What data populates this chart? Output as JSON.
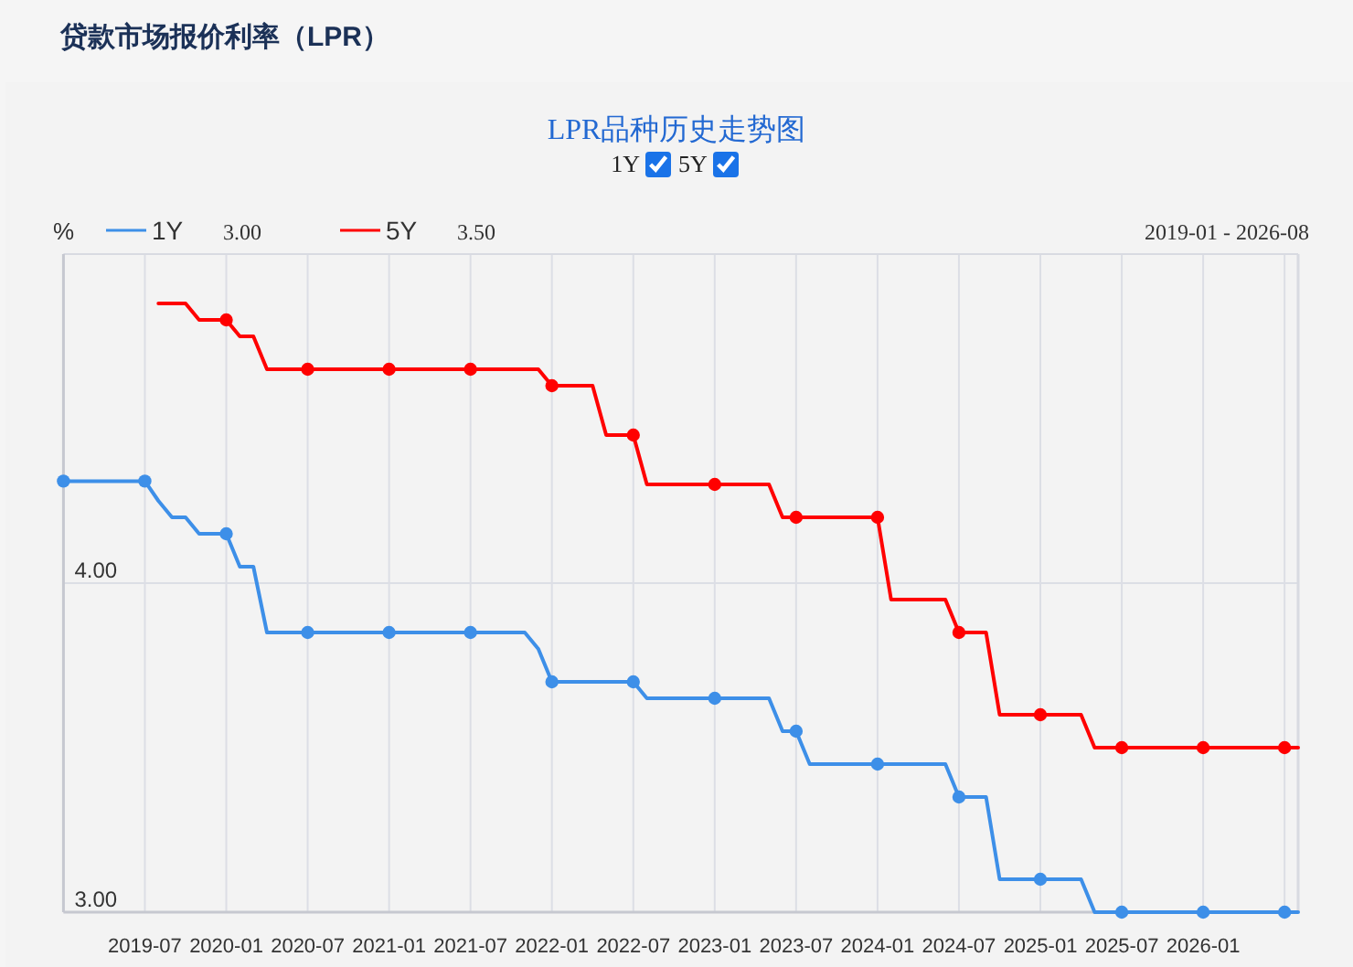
{
  "chart_data": {
    "type": "line",
    "title": "贷款市场报价利率（LPR）",
    "subtitle": "LPR品种历史走势图",
    "ylabel": "%",
    "annotations": [
      "3.00",
      "3.50",
      "2019-01 - 2026-08"
    ],
    "x": [
      "2019-01",
      "2019-02",
      "2019-03",
      "2019-04",
      "2019-05",
      "2019-06",
      "2019-07",
      "2019-08",
      "2019-09",
      "2019-10",
      "2019-11",
      "2019-12",
      "2020-01",
      "2020-02",
      "2020-03",
      "2020-04",
      "2020-05",
      "2020-06",
      "2020-07",
      "2020-08",
      "2020-09",
      "2020-10",
      "2020-11",
      "2020-12",
      "2021-01",
      "2021-02",
      "2021-03",
      "2021-04",
      "2021-05",
      "2021-06",
      "2021-07",
      "2021-08",
      "2021-09",
      "2021-10",
      "2021-11",
      "2021-12",
      "2022-01",
      "2022-02",
      "2022-03",
      "2022-04",
      "2022-05",
      "2022-06",
      "2022-07",
      "2022-08",
      "2022-09",
      "2022-10",
      "2022-11",
      "2022-12",
      "2023-01",
      "2023-02",
      "2023-03",
      "2023-04",
      "2023-05",
      "2023-06",
      "2023-07",
      "2023-08",
      "2023-09",
      "2023-10",
      "2023-11",
      "2023-12",
      "2024-01",
      "2024-02",
      "2024-03",
      "2024-04",
      "2024-05",
      "2024-06",
      "2024-07",
      "2024-08",
      "2024-09",
      "2024-10",
      "2024-11",
      "2024-12",
      "2025-01",
      "2025-02",
      "2025-03",
      "2025-04",
      "2025-05",
      "2025-06",
      "2025-07",
      "2025-08",
      "2025-09",
      "2025-10",
      "2025-11",
      "2025-12",
      "2026-01",
      "2026-02",
      "2026-03",
      "2026-04",
      "2026-05",
      "2026-06",
      "2026-07",
      "2026-08"
    ],
    "xlim": [
      "2019-01",
      "2026-08"
    ],
    "xticks": [
      {
        "value": "2019-01",
        "label": null
      },
      {
        "value": "2019-07",
        "label": "2019-07"
      },
      {
        "value": "2020-01",
        "label": "2020-01"
      },
      {
        "value": "2020-07",
        "label": "2020-07"
      },
      {
        "value": "2021-01",
        "label": "2021-01"
      },
      {
        "value": "2021-07",
        "label": "2021-07"
      },
      {
        "value": "2022-01",
        "label": "2022-01"
      },
      {
        "value": "2022-07",
        "label": "2022-07"
      },
      {
        "value": "2023-01",
        "label": "2023-01"
      },
      {
        "value": "2023-07",
        "label": "2023-07"
      },
      {
        "value": "2024-01",
        "label": "2024-01"
      },
      {
        "value": "2024-07",
        "label": "2024-07"
      },
      {
        "value": "2025-01",
        "label": "2025-01"
      },
      {
        "value": "2025-07",
        "label": "2025-07"
      },
      {
        "value": "2026-01",
        "label": "2026-01"
      },
      {
        "value": "2026-07",
        "label": null
      }
    ],
    "ylim": [
      3,
      5
    ],
    "yticks": [
      {
        "value": 3,
        "label": "3.00"
      },
      {
        "value": 4,
        "label": "4.00"
      }
    ],
    "grid": true,
    "legend": "top left",
    "line_style": "solid",
    "series": [
      {
        "name": "1Y",
        "color": "#3d8fe8",
        "marker": "none",
        "values": [
          4.31,
          4.31,
          4.31,
          4.31,
          4.31,
          4.31,
          4.31,
          4.25,
          4.2,
          4.2,
          4.15,
          4.15,
          4.15,
          4.05,
          4.05,
          3.85,
          3.85,
          3.85,
          3.85,
          3.85,
          3.85,
          3.85,
          3.85,
          3.85,
          3.85,
          3.85,
          3.85,
          3.85,
          3.85,
          3.85,
          3.85,
          3.85,
          3.85,
          3.85,
          3.85,
          3.8,
          3.7,
          3.7,
          3.7,
          3.7,
          3.7,
          3.7,
          3.7,
          3.65,
          3.65,
          3.65,
          3.65,
          3.65,
          3.65,
          3.65,
          3.65,
          3.65,
          3.65,
          3.55,
          3.55,
          3.45,
          3.45,
          3.45,
          3.45,
          3.45,
          3.45,
          3.45,
          3.45,
          3.45,
          3.45,
          3.45,
          3.35,
          3.35,
          3.35,
          3.1,
          3.1,
          3.1,
          3.1,
          3.1,
          3.1,
          3.1,
          3,
          3,
          3,
          3,
          3,
          3,
          3,
          3,
          3,
          3,
          3,
          3,
          3,
          3,
          3,
          3
        ]
      },
      {
        "name": "5Y",
        "color": "#ff0000",
        "marker": "none",
        "values": [
          null,
          null,
          null,
          null,
          null,
          null,
          null,
          4.85,
          4.85,
          4.85,
          4.8,
          4.8,
          4.8,
          4.75,
          4.75,
          4.65,
          4.65,
          4.65,
          4.65,
          4.65,
          4.65,
          4.65,
          4.65,
          4.65,
          4.65,
          4.65,
          4.65,
          4.65,
          4.65,
          4.65,
          4.65,
          4.65,
          4.65,
          4.65,
          4.65,
          4.65,
          4.6,
          4.6,
          4.6,
          4.6,
          4.45,
          4.45,
          4.45,
          4.3,
          4.3,
          4.3,
          4.3,
          4.3,
          4.3,
          4.3,
          4.3,
          4.3,
          4.3,
          4.2,
          4.2,
          4.2,
          4.2,
          4.2,
          4.2,
          4.2,
          4.2,
          3.95,
          3.95,
          3.95,
          3.95,
          3.95,
          3.85,
          3.85,
          3.85,
          3.6,
          3.6,
          3.6,
          3.6,
          3.6,
          3.6,
          3.6,
          3.5,
          3.5,
          3.5,
          3.5,
          3.5,
          3.5,
          3.5,
          3.5,
          3.5,
          3.5,
          3.5,
          3.5,
          3.5,
          3.5,
          3.5,
          3.5
        ]
      },
      {
        "type": "scatter",
        "color": "#3d8fe8",
        "marker": "circle",
        "x": [
          "2019-01",
          "2019-07",
          "2020-01",
          "2020-07",
          "2021-01",
          "2021-07",
          "2022-01",
          "2022-07",
          "2023-01",
          "2023-07",
          "2024-01",
          "2024-07",
          "2025-01",
          "2025-07",
          "2026-01",
          "2026-07"
        ],
        "values": [
          4.31,
          4.31,
          4.15,
          3.85,
          3.85,
          3.85,
          3.7,
          3.7,
          3.65,
          3.55,
          3.45,
          3.35,
          3.1,
          3,
          3,
          3
        ]
      },
      {
        "type": "scatter",
        "color": "#ff0000",
        "marker": "circle",
        "x": [
          "2020-01",
          "2020-07",
          "2021-01",
          "2021-07",
          "2022-01",
          "2022-07",
          "2023-01",
          "2023-07",
          "2024-01",
          "2024-07",
          "2025-01",
          "2025-07",
          "2026-01",
          "2026-07"
        ],
        "values": [
          4.8,
          4.65,
          4.65,
          4.65,
          4.6,
          4.45,
          4.3,
          4.2,
          4.2,
          3.85,
          3.6,
          3.5,
          3.5,
          3.5
        ]
      }
    ]
  }
}
